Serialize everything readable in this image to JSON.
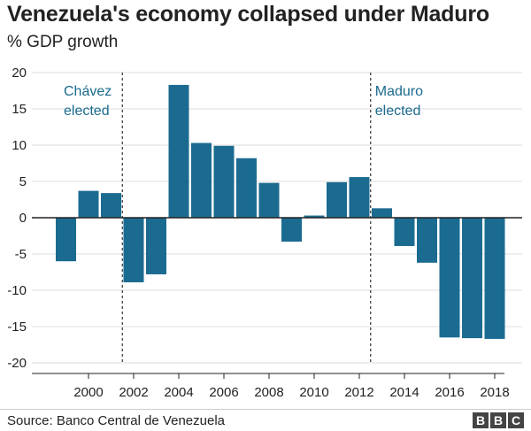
{
  "header": {
    "title": "Venezuela's economy collapsed under Maduro",
    "subtitle": "% GDP growth"
  },
  "footer": {
    "source": "Source: Banco Central de Venezuela",
    "logo_letters": [
      "B",
      "B",
      "C"
    ]
  },
  "colors": {
    "bar": "#1b6b91",
    "axis": "#222222",
    "grid": "#dddddd",
    "annotation": "#1a6a8f"
  },
  "chart_data": {
    "type": "bar",
    "title": "Venezuela's economy collapsed under Maduro",
    "subtitle": "% GDP growth",
    "categories": [
      1999,
      2000,
      2001,
      2002,
      2003,
      2004,
      2005,
      2006,
      2007,
      2008,
      2009,
      2010,
      2011,
      2012,
      2013,
      2014,
      2015,
      2016,
      2017,
      2018
    ],
    "values": [
      -6.0,
      3.7,
      3.4,
      -8.9,
      -7.8,
      18.3,
      10.3,
      9.9,
      8.2,
      4.8,
      -3.3,
      0.3,
      4.9,
      5.6,
      1.3,
      -3.9,
      -6.2,
      -16.5,
      -16.6,
      -16.7
    ],
    "x_tick_labels": [
      "2000",
      "2002",
      "2004",
      "2006",
      "2008",
      "2010",
      "2012",
      "2014",
      "2016",
      "2018"
    ],
    "x_tick_values": [
      2000,
      2002,
      2004,
      2006,
      2008,
      2010,
      2012,
      2014,
      2016,
      2018
    ],
    "y_ticks": [
      20,
      15,
      10,
      5,
      0,
      -5,
      -10,
      -15,
      -20
    ],
    "ylim": [
      -20,
      20
    ],
    "grid": true,
    "annotations": [
      {
        "at_year_boundary": 2001.5,
        "lines": [
          "Chávez",
          "elected"
        ]
      },
      {
        "at_year_boundary": 2012.5,
        "lines": [
          "Maduro",
          "elected"
        ]
      }
    ]
  }
}
